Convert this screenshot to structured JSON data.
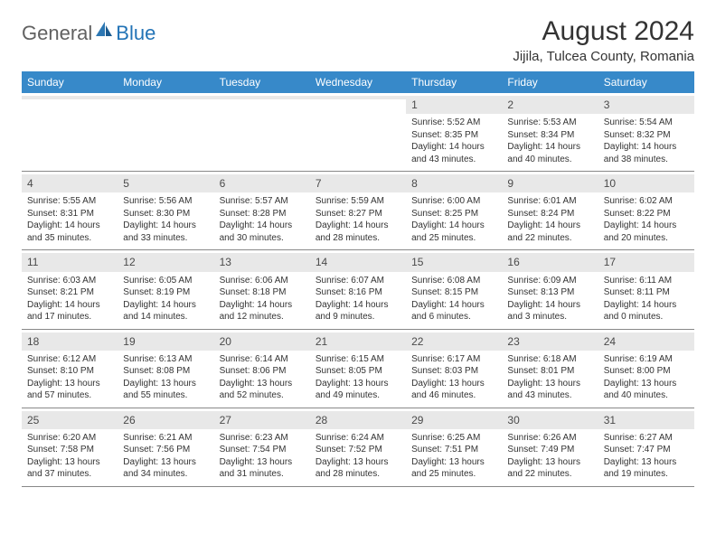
{
  "logo": {
    "general": "General",
    "blue": "Blue"
  },
  "title": "August 2024",
  "location": "Jijila, Tulcea County, Romania",
  "colors": {
    "header_bg": "#3789c9",
    "header_text": "#ffffff",
    "band_bg": "#e8e8e8",
    "text": "#333333",
    "logo_gray": "#616161",
    "logo_blue": "#2273b6",
    "border": "#888888"
  },
  "day_headers": [
    "Sunday",
    "Monday",
    "Tuesday",
    "Wednesday",
    "Thursday",
    "Friday",
    "Saturday"
  ],
  "weeks": [
    [
      {
        "num": "",
        "sunrise": "",
        "sunset": "",
        "daylight": ""
      },
      {
        "num": "",
        "sunrise": "",
        "sunset": "",
        "daylight": ""
      },
      {
        "num": "",
        "sunrise": "",
        "sunset": "",
        "daylight": ""
      },
      {
        "num": "",
        "sunrise": "",
        "sunset": "",
        "daylight": ""
      },
      {
        "num": "1",
        "sunrise": "Sunrise: 5:52 AM",
        "sunset": "Sunset: 8:35 PM",
        "daylight": "Daylight: 14 hours and 43 minutes."
      },
      {
        "num": "2",
        "sunrise": "Sunrise: 5:53 AM",
        "sunset": "Sunset: 8:34 PM",
        "daylight": "Daylight: 14 hours and 40 minutes."
      },
      {
        "num": "3",
        "sunrise": "Sunrise: 5:54 AM",
        "sunset": "Sunset: 8:32 PM",
        "daylight": "Daylight: 14 hours and 38 minutes."
      }
    ],
    [
      {
        "num": "4",
        "sunrise": "Sunrise: 5:55 AM",
        "sunset": "Sunset: 8:31 PM",
        "daylight": "Daylight: 14 hours and 35 minutes."
      },
      {
        "num": "5",
        "sunrise": "Sunrise: 5:56 AM",
        "sunset": "Sunset: 8:30 PM",
        "daylight": "Daylight: 14 hours and 33 minutes."
      },
      {
        "num": "6",
        "sunrise": "Sunrise: 5:57 AM",
        "sunset": "Sunset: 8:28 PM",
        "daylight": "Daylight: 14 hours and 30 minutes."
      },
      {
        "num": "7",
        "sunrise": "Sunrise: 5:59 AM",
        "sunset": "Sunset: 8:27 PM",
        "daylight": "Daylight: 14 hours and 28 minutes."
      },
      {
        "num": "8",
        "sunrise": "Sunrise: 6:00 AM",
        "sunset": "Sunset: 8:25 PM",
        "daylight": "Daylight: 14 hours and 25 minutes."
      },
      {
        "num": "9",
        "sunrise": "Sunrise: 6:01 AM",
        "sunset": "Sunset: 8:24 PM",
        "daylight": "Daylight: 14 hours and 22 minutes."
      },
      {
        "num": "10",
        "sunrise": "Sunrise: 6:02 AM",
        "sunset": "Sunset: 8:22 PM",
        "daylight": "Daylight: 14 hours and 20 minutes."
      }
    ],
    [
      {
        "num": "11",
        "sunrise": "Sunrise: 6:03 AM",
        "sunset": "Sunset: 8:21 PM",
        "daylight": "Daylight: 14 hours and 17 minutes."
      },
      {
        "num": "12",
        "sunrise": "Sunrise: 6:05 AM",
        "sunset": "Sunset: 8:19 PM",
        "daylight": "Daylight: 14 hours and 14 minutes."
      },
      {
        "num": "13",
        "sunrise": "Sunrise: 6:06 AM",
        "sunset": "Sunset: 8:18 PM",
        "daylight": "Daylight: 14 hours and 12 minutes."
      },
      {
        "num": "14",
        "sunrise": "Sunrise: 6:07 AM",
        "sunset": "Sunset: 8:16 PM",
        "daylight": "Daylight: 14 hours and 9 minutes."
      },
      {
        "num": "15",
        "sunrise": "Sunrise: 6:08 AM",
        "sunset": "Sunset: 8:15 PM",
        "daylight": "Daylight: 14 hours and 6 minutes."
      },
      {
        "num": "16",
        "sunrise": "Sunrise: 6:09 AM",
        "sunset": "Sunset: 8:13 PM",
        "daylight": "Daylight: 14 hours and 3 minutes."
      },
      {
        "num": "17",
        "sunrise": "Sunrise: 6:11 AM",
        "sunset": "Sunset: 8:11 PM",
        "daylight": "Daylight: 14 hours and 0 minutes."
      }
    ],
    [
      {
        "num": "18",
        "sunrise": "Sunrise: 6:12 AM",
        "sunset": "Sunset: 8:10 PM",
        "daylight": "Daylight: 13 hours and 57 minutes."
      },
      {
        "num": "19",
        "sunrise": "Sunrise: 6:13 AM",
        "sunset": "Sunset: 8:08 PM",
        "daylight": "Daylight: 13 hours and 55 minutes."
      },
      {
        "num": "20",
        "sunrise": "Sunrise: 6:14 AM",
        "sunset": "Sunset: 8:06 PM",
        "daylight": "Daylight: 13 hours and 52 minutes."
      },
      {
        "num": "21",
        "sunrise": "Sunrise: 6:15 AM",
        "sunset": "Sunset: 8:05 PM",
        "daylight": "Daylight: 13 hours and 49 minutes."
      },
      {
        "num": "22",
        "sunrise": "Sunrise: 6:17 AM",
        "sunset": "Sunset: 8:03 PM",
        "daylight": "Daylight: 13 hours and 46 minutes."
      },
      {
        "num": "23",
        "sunrise": "Sunrise: 6:18 AM",
        "sunset": "Sunset: 8:01 PM",
        "daylight": "Daylight: 13 hours and 43 minutes."
      },
      {
        "num": "24",
        "sunrise": "Sunrise: 6:19 AM",
        "sunset": "Sunset: 8:00 PM",
        "daylight": "Daylight: 13 hours and 40 minutes."
      }
    ],
    [
      {
        "num": "25",
        "sunrise": "Sunrise: 6:20 AM",
        "sunset": "Sunset: 7:58 PM",
        "daylight": "Daylight: 13 hours and 37 minutes."
      },
      {
        "num": "26",
        "sunrise": "Sunrise: 6:21 AM",
        "sunset": "Sunset: 7:56 PM",
        "daylight": "Daylight: 13 hours and 34 minutes."
      },
      {
        "num": "27",
        "sunrise": "Sunrise: 6:23 AM",
        "sunset": "Sunset: 7:54 PM",
        "daylight": "Daylight: 13 hours and 31 minutes."
      },
      {
        "num": "28",
        "sunrise": "Sunrise: 6:24 AM",
        "sunset": "Sunset: 7:52 PM",
        "daylight": "Daylight: 13 hours and 28 minutes."
      },
      {
        "num": "29",
        "sunrise": "Sunrise: 6:25 AM",
        "sunset": "Sunset: 7:51 PM",
        "daylight": "Daylight: 13 hours and 25 minutes."
      },
      {
        "num": "30",
        "sunrise": "Sunrise: 6:26 AM",
        "sunset": "Sunset: 7:49 PM",
        "daylight": "Daylight: 13 hours and 22 minutes."
      },
      {
        "num": "31",
        "sunrise": "Sunrise: 6:27 AM",
        "sunset": "Sunset: 7:47 PM",
        "daylight": "Daylight: 13 hours and 19 minutes."
      }
    ]
  ]
}
